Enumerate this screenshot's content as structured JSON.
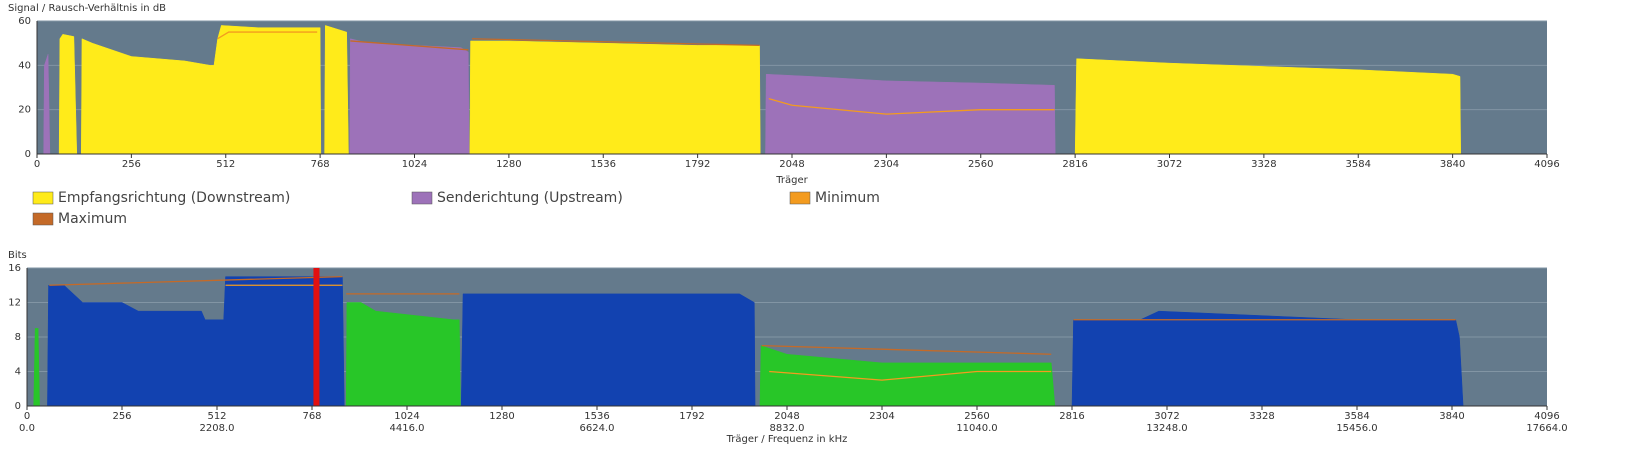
{
  "chart_data": [
    {
      "type": "area",
      "title": "Signal / Rausch-Verhältnis in dB",
      "x_label": "Träger",
      "xlim": [
        0,
        4096
      ],
      "xticks": [
        0,
        256,
        512,
        768,
        1024,
        1280,
        1536,
        1792,
        2048,
        2304,
        2560,
        2816,
        3072,
        3328,
        3584,
        3840,
        4096
      ],
      "ylim": [
        0,
        60
      ],
      "yticks": [
        0,
        20,
        40,
        60
      ],
      "grid": true,
      "background": "#647a8c",
      "series": [
        {
          "name": "Empfangsrichtung (Downstream)",
          "color": "#ffeb1a",
          "type": "area",
          "x": [
            0,
            60,
            62,
            70,
            100,
            108,
            120,
            122,
            150,
            256,
            400,
            470,
            480,
            490,
            500,
            600,
            768,
            770,
            780,
            782,
            840,
            845,
            1174,
            1176,
            1280,
            1536,
            1792,
            1960,
            1962,
            2816,
            2820,
            3072,
            3584,
            3840,
            3860,
            3862,
            4096
          ],
          "values": [
            0,
            0,
            52,
            54,
            53,
            0,
            0,
            52,
            50,
            44,
            42,
            40,
            40,
            52,
            58,
            57,
            57,
            0,
            0,
            58,
            55,
            0,
            0,
            51,
            51,
            50,
            49,
            49,
            0,
            0,
            43,
            41,
            38,
            36,
            35,
            0,
            0
          ]
        },
        {
          "name": "Senderichtung (Upstream)",
          "color": "#9d72b9",
          "type": "area",
          "x": [
            0,
            18,
            20,
            30,
            35,
            848,
            850,
            900,
            1024,
            1150,
            1170,
            1172,
            1976,
            1978,
            2100,
            2304,
            2560,
            2760,
            2762,
            4096
          ],
          "values": [
            0,
            0,
            40,
            45,
            0,
            0,
            52,
            50,
            49,
            48,
            46,
            0,
            0,
            36,
            35,
            33,
            32,
            31,
            0,
            0
          ]
        },
        {
          "name": "Minimum",
          "color": "#f39b1f",
          "type": "line",
          "x": [
            490,
            520,
            760,
            1000,
            1985,
            2048,
            2304,
            2560,
            2760
          ],
          "values": [
            52,
            55,
            55,
            null,
            25,
            22,
            18,
            20,
            20
          ]
        },
        {
          "name": "Maximum",
          "color": "#c46a28",
          "type": "line",
          "x": [
            850,
            1170,
            1175,
            1180,
            1960
          ],
          "values": [
            51,
            47,
            null,
            52,
            49
          ]
        }
      ]
    },
    {
      "type": "area",
      "title": "Bits",
      "x_label": "Träger / Frequenz in kHz",
      "xlim": [
        0,
        4096
      ],
      "xticks": [
        0,
        256,
        512,
        768,
        1024,
        1280,
        1536,
        1792,
        2048,
        2304,
        2560,
        2816,
        3072,
        3328,
        3584,
        3840,
        4096
      ],
      "xticks2": [
        {
          "value": 0,
          "label": "0.0"
        },
        {
          "value": 512,
          "label": "2208.0"
        },
        {
          "value": 1024,
          "label": "4416.0"
        },
        {
          "value": 1536,
          "label": "6624.0"
        },
        {
          "value": 2048,
          "label": "8832.0"
        },
        {
          "value": 2560,
          "label": "11040.0"
        },
        {
          "value": 3072,
          "label": "13248.0"
        },
        {
          "value": 3584,
          "label": "15456.0"
        },
        {
          "value": 4096,
          "label": "17664.0"
        }
      ],
      "ylim": [
        0,
        16
      ],
      "yticks": [
        0,
        4,
        8,
        12,
        16
      ],
      "grid": true,
      "background": "#647a8c",
      "marker_x": 780,
      "marker_color": "#e31010",
      "series": [
        {
          "color": "#1242b0",
          "type": "area",
          "x": [
            0,
            55,
            58,
            100,
            150,
            256,
            300,
            470,
            480,
            530,
            535,
            850,
            855,
            1170,
            1175,
            1280,
            1920,
            1960,
            1962,
            2816,
            2820,
            3000,
            3050,
            3584,
            3850,
            3860,
            3870,
            4096
          ],
          "values": [
            0,
            0,
            14,
            14,
            12,
            12,
            11,
            11,
            10,
            10,
            15,
            15,
            0,
            0,
            13,
            13,
            13,
            12,
            0,
            0,
            10,
            10,
            11,
            10,
            10,
            8,
            0,
            0
          ]
        },
        {
          "color": "#28c628",
          "type": "area",
          "x": [
            0,
            18,
            22,
            30,
            34,
            860,
            862,
            900,
            940,
            1150,
            1165,
            1168,
            1975,
            1978,
            2048,
            2304,
            2760,
            2770,
            4096
          ],
          "values": [
            0,
            0,
            9,
            9,
            0,
            0,
            12,
            12,
            11,
            10,
            10,
            0,
            0,
            7,
            6,
            5,
            5,
            0,
            0
          ]
        },
        {
          "color": "#f39b1f",
          "type": "line",
          "x": [
            535,
            850,
            900,
            2000,
            2304,
            2560,
            2760
          ],
          "values": [
            14,
            14,
            null,
            4,
            3,
            4,
            4
          ]
        },
        {
          "color": "#c46a28",
          "type": "line",
          "x": [
            60,
            850,
            855,
            860,
            1165,
            1170,
            1980,
            2760,
            2790,
            2820,
            3850
          ],
          "values": [
            14,
            15,
            null,
            13,
            13,
            null,
            7,
            6,
            null,
            10,
            10
          ]
        }
      ]
    }
  ]
}
